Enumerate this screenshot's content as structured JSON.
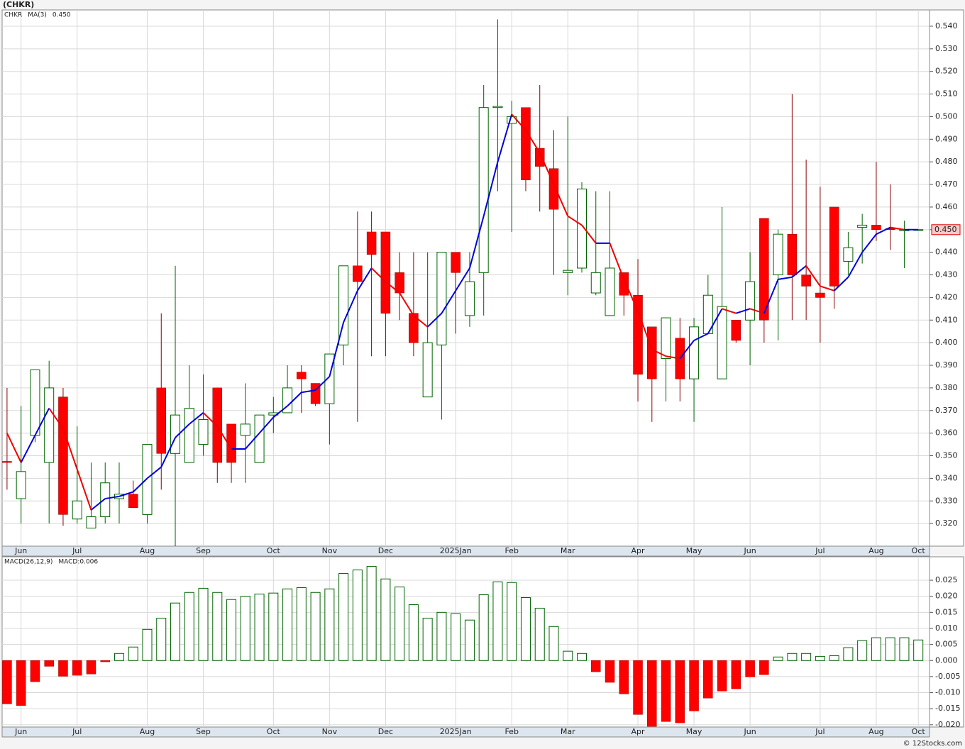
{
  "page_title": "(CHKR)",
  "footer": "© 12Stocks.com",
  "chart_data": [
    {
      "type": "candlestick",
      "legend": [
        {
          "text": "CHKR",
          "color": "#006400"
        },
        {
          "text": "MA(3)",
          "color": "#0000cc"
        },
        {
          "text": "0.450",
          "color": "#0000cc"
        }
      ],
      "up_color": "#006400",
      "down_color": "#ff0000",
      "down_wick_color": "#8b0000",
      "open": [
        0.3475,
        0.331,
        0.359,
        0.347,
        0.376,
        0.322,
        0.318,
        0.323,
        0.331,
        0.333,
        0.324,
        0.38,
        0.351,
        0.347,
        0.355,
        0.38,
        0.364,
        0.359,
        0.347,
        0.368,
        0.369,
        0.387,
        0.382,
        0.373,
        0.399,
        0.434,
        0.449,
        0.449,
        0.431,
        0.413,
        0.376,
        0.399,
        0.44,
        0.412,
        0.431,
        0.504,
        0.497,
        0.504,
        0.486,
        0.477,
        0.431,
        0.433,
        0.422,
        0.412,
        0.431,
        0.421,
        0.407,
        0.393,
        0.402,
        0.384,
        0.404,
        0.384,
        0.41,
        0.41,
        0.455,
        0.43,
        0.448,
        0.43,
        0.422,
        0.46,
        0.436,
        0.451,
        0.452,
        0.4505,
        0.4495,
        0.45
      ],
      "high": [
        0.38,
        0.372,
        0.388,
        0.392,
        0.38,
        0.363,
        0.347,
        0.347,
        0.347,
        0.339,
        0.355,
        0.413,
        0.434,
        0.39,
        0.386,
        0.38,
        0.364,
        0.382,
        0.368,
        0.376,
        0.39,
        0.39,
        0.382,
        0.395,
        0.434,
        0.458,
        0.458,
        0.449,
        0.44,
        0.44,
        0.44,
        0.44,
        0.44,
        0.44,
        0.514,
        0.543,
        0.507,
        0.504,
        0.514,
        0.494,
        0.5,
        0.471,
        0.467,
        0.467,
        0.431,
        0.437,
        0.407,
        0.411,
        0.411,
        0.411,
        0.43,
        0.46,
        0.41,
        0.44,
        0.455,
        0.45,
        0.51,
        0.481,
        0.469,
        0.46,
        0.449,
        0.457,
        0.48,
        0.47,
        0.454,
        0.45
      ],
      "low": [
        0.335,
        0.32,
        0.356,
        0.32,
        0.319,
        0.32,
        0.318,
        0.32,
        0.32,
        0.327,
        0.32,
        0.335,
        0.31,
        0.347,
        0.35,
        0.338,
        0.338,
        0.338,
        0.347,
        0.36,
        0.369,
        0.369,
        0.372,
        0.355,
        0.39,
        0.365,
        0.394,
        0.394,
        0.41,
        0.394,
        0.376,
        0.366,
        0.404,
        0.407,
        0.412,
        0.467,
        0.449,
        0.467,
        0.458,
        0.43,
        0.421,
        0.431,
        0.421,
        0.412,
        0.412,
        0.374,
        0.365,
        0.374,
        0.374,
        0.365,
        0.404,
        0.384,
        0.4,
        0.39,
        0.4,
        0.401,
        0.41,
        0.41,
        0.4,
        0.415,
        0.43,
        0.435,
        0.445,
        0.441,
        0.433,
        0.45
      ],
      "close": [
        0.347,
        0.343,
        0.388,
        0.38,
        0.324,
        0.33,
        0.323,
        0.338,
        0.333,
        0.327,
        0.355,
        0.351,
        0.368,
        0.371,
        0.366,
        0.347,
        0.347,
        0.364,
        0.368,
        0.369,
        0.38,
        0.384,
        0.373,
        0.395,
        0.434,
        0.427,
        0.439,
        0.413,
        0.422,
        0.4,
        0.4,
        0.44,
        0.431,
        0.427,
        0.504,
        0.5045,
        0.5,
        0.472,
        0.478,
        0.459,
        0.432,
        0.468,
        0.431,
        0.433,
        0.421,
        0.386,
        0.384,
        0.411,
        0.384,
        0.407,
        0.421,
        0.416,
        0.401,
        0.427,
        0.41,
        0.448,
        0.43,
        0.425,
        0.42,
        0.425,
        0.442,
        0.452,
        0.45,
        0.45,
        0.45,
        0.45
      ],
      "series": [
        {
          "name": "MA(3)",
          "up_color": "#0000dd",
          "down_color": "#ee0000",
          "values": [
            0.36,
            0.347,
            0.359,
            0.371,
            0.362,
            0.344,
            0.326,
            0.331,
            0.332,
            0.334,
            0.34,
            0.345,
            0.358,
            0.364,
            0.369,
            0.363,
            0.353,
            0.353,
            0.36,
            0.367,
            0.372,
            0.378,
            0.379,
            0.385,
            0.409,
            0.423,
            0.433,
            0.427,
            0.422,
            0.412,
            0.407,
            0.413,
            0.423,
            0.433,
            0.456,
            0.48,
            0.501,
            0.494,
            0.484,
            0.47,
            0.456,
            0.452,
            0.444,
            0.444,
            0.428,
            0.414,
            0.397,
            0.394,
            0.393,
            0.401,
            0.404,
            0.415,
            0.413,
            0.415,
            0.413,
            0.428,
            0.429,
            0.434,
            0.425,
            0.423,
            0.429,
            0.44,
            0.448,
            0.451,
            0.45,
            0.45
          ]
        }
      ],
      "last_price": {
        "value": 0.45,
        "label": "0.450"
      },
      "xlim": [
        -0.35,
        65.8
      ],
      "xticks": [
        {
          "value": 1,
          "label": "Jun"
        },
        {
          "value": 5,
          "label": "Jul"
        },
        {
          "value": 10,
          "label": "Aug"
        },
        {
          "value": 14,
          "label": "Sep"
        },
        {
          "value": 19,
          "label": "Oct"
        },
        {
          "value": 23,
          "label": "Nov"
        },
        {
          "value": 27,
          "label": "Dec"
        },
        {
          "value": 32,
          "label": "2025Jan"
        },
        {
          "value": 36,
          "label": "Feb"
        },
        {
          "value": 40,
          "label": "Mar"
        },
        {
          "value": 45,
          "label": "Apr"
        },
        {
          "value": 49,
          "label": "May"
        },
        {
          "value": 53,
          "label": "Jun"
        },
        {
          "value": 58,
          "label": "Jul"
        },
        {
          "value": 62,
          "label": "Aug"
        },
        {
          "value": 65,
          "label": "Oct"
        }
      ],
      "ylim": [
        0.31,
        0.5472
      ],
      "yticks": [
        {
          "value": 0.54,
          "label": "0.540"
        },
        {
          "value": 0.53,
          "label": "0.530"
        },
        {
          "value": 0.52,
          "label": "0.520"
        },
        {
          "value": 0.51,
          "label": "0.510"
        },
        {
          "value": 0.5,
          "label": "0.500"
        },
        {
          "value": 0.49,
          "label": "0.490"
        },
        {
          "value": 0.48,
          "label": "0.480"
        },
        {
          "value": 0.47,
          "label": "0.470"
        },
        {
          "value": 0.46,
          "label": "0.460"
        },
        {
          "value": 0.45,
          "label": "0.450"
        },
        {
          "value": 0.44,
          "label": "0.440"
        },
        {
          "value": 0.43,
          "label": "0.430"
        },
        {
          "value": 0.42,
          "label": "0.420"
        },
        {
          "value": 0.41,
          "label": "0.410"
        },
        {
          "value": 0.4,
          "label": "0.400"
        },
        {
          "value": 0.39,
          "label": "0.390"
        },
        {
          "value": 0.38,
          "label": "0.380"
        },
        {
          "value": 0.37,
          "label": "0.370"
        },
        {
          "value": 0.36,
          "label": "0.360"
        },
        {
          "value": 0.35,
          "label": "0.350"
        },
        {
          "value": 0.34,
          "label": "0.340"
        },
        {
          "value": 0.33,
          "label": "0.330"
        },
        {
          "value": 0.32,
          "label": "0.320"
        }
      ],
      "grid": true
    },
    {
      "type": "bar",
      "legend": [
        {
          "text": "MACD(26,12,9)",
          "color": "#333333"
        },
        {
          "text": "MACD:0.006",
          "color": "#0000cc"
        }
      ],
      "up_color": "#006400",
      "down_color": "#ff0000",
      "values": [
        -0.0135,
        -0.014,
        -0.0066,
        -0.0018,
        -0.0049,
        -0.0046,
        -0.0042,
        -0.0004,
        0.0022,
        0.0042,
        0.0097,
        0.0132,
        0.0179,
        0.0212,
        0.0225,
        0.0212,
        0.019,
        0.02,
        0.0207,
        0.021,
        0.0223,
        0.0227,
        0.0212,
        0.0223,
        0.0271,
        0.0282,
        0.0293,
        0.0254,
        0.0229,
        0.0174,
        0.0132,
        0.015,
        0.0146,
        0.0126,
        0.0205,
        0.0245,
        0.0243,
        0.0196,
        0.0163,
        0.0106,
        0.0029,
        0.0022,
        -0.0035,
        -0.0068,
        -0.0104,
        -0.0168,
        -0.0205,
        -0.019,
        -0.0194,
        -0.0157,
        -0.0117,
        -0.0095,
        -0.0088,
        -0.0051,
        -0.0044,
        0.0011,
        0.0022,
        0.0022,
        0.0013,
        0.0015,
        0.004,
        0.0062,
        0.0071,
        0.0071,
        0.0071,
        0.0064
      ],
      "xlim": [
        -0.35,
        65.8
      ],
      "xticks": [
        {
          "value": 1,
          "label": "Jun"
        },
        {
          "value": 5,
          "label": "Jul"
        },
        {
          "value": 10,
          "label": "Aug"
        },
        {
          "value": 14,
          "label": "Sep"
        },
        {
          "value": 19,
          "label": "Oct"
        },
        {
          "value": 23,
          "label": "Nov"
        },
        {
          "value": 27,
          "label": "Dec"
        },
        {
          "value": 32,
          "label": "2025Jan"
        },
        {
          "value": 36,
          "label": "Feb"
        },
        {
          "value": 40,
          "label": "Mar"
        },
        {
          "value": 45,
          "label": "Apr"
        },
        {
          "value": 49,
          "label": "May"
        },
        {
          "value": 53,
          "label": "Jun"
        },
        {
          "value": 58,
          "label": "Jul"
        },
        {
          "value": 62,
          "label": "Aug"
        },
        {
          "value": 65,
          "label": "Oct"
        }
      ],
      "ylim": [
        -0.0207,
        0.0323
      ],
      "yticks": [
        0.025,
        {
          "value": 0.02,
          "label": "0.020"
        },
        0.015,
        {
          "value": 0.01,
          "label": "0.010"
        },
        0.005,
        {
          "value": 0,
          "label": "0.000"
        },
        -0.005,
        {
          "value": -0.01,
          "label": "-0.010"
        },
        -0.015,
        {
          "value": -0.02,
          "label": "-0.020"
        }
      ],
      "grid": true
    }
  ]
}
